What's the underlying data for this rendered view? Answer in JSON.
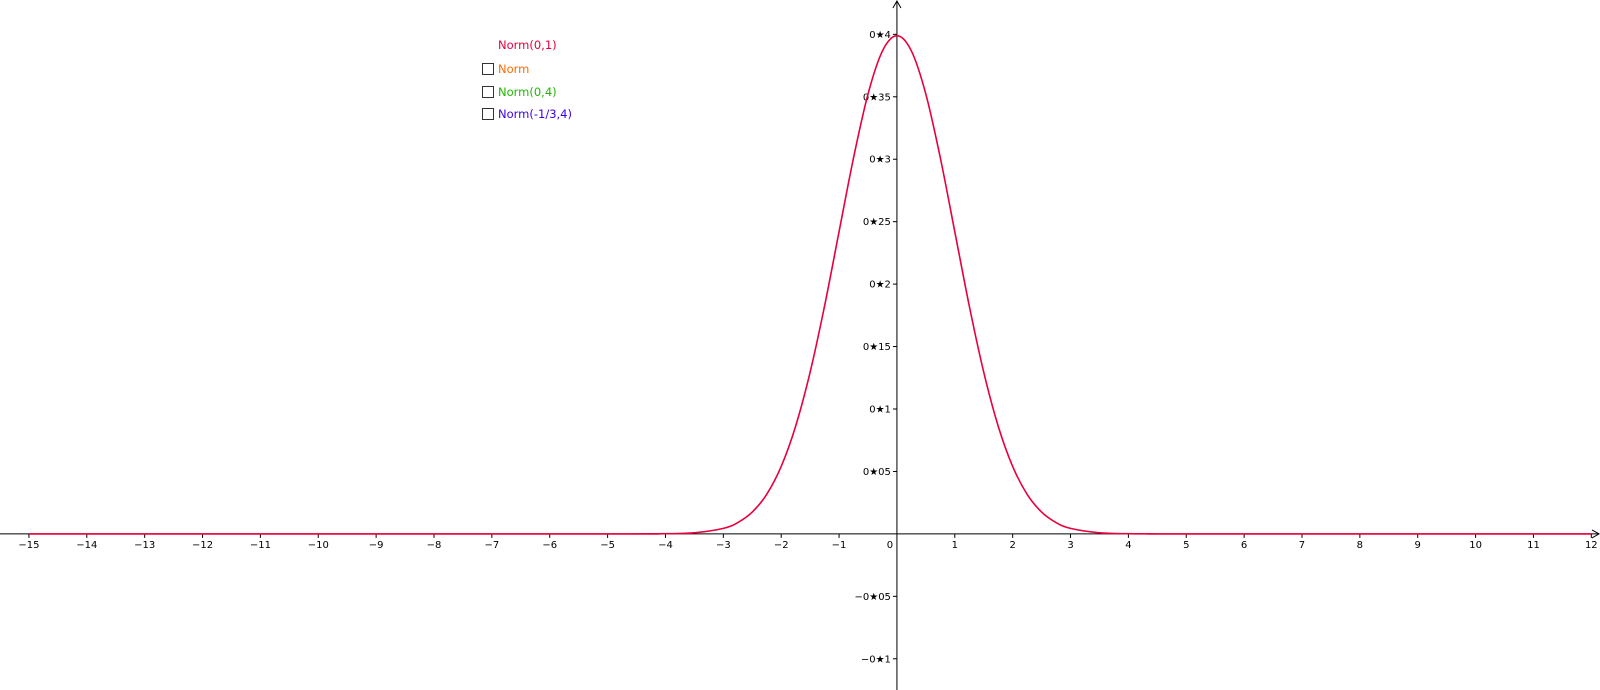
{
  "chart_data": {
    "type": "line",
    "title": "",
    "xlabel": "",
    "ylabel": "",
    "xlim": [
      -15.5,
      12.15
    ],
    "ylim": [
      -0.125,
      0.4275
    ],
    "grid": false,
    "x_ticks": [
      -15,
      -14,
      -13,
      -12,
      -11,
      -10,
      -9,
      -8,
      -7,
      -6,
      -5,
      -4,
      -3,
      -2,
      -1,
      0,
      1,
      2,
      3,
      4,
      5,
      6,
      7,
      8,
      9,
      10,
      11,
      12
    ],
    "x_tick_labels": [
      "−15",
      "−14",
      "−13",
      "−12",
      "−11",
      "−10",
      "−9",
      "−8",
      "−7",
      "−6",
      "−5",
      "−4",
      "−3",
      "−2",
      "−1",
      "0",
      "1",
      "2",
      "3",
      "4",
      "5",
      "6",
      "7",
      "8",
      "9",
      "10",
      "11",
      "12"
    ],
    "y_ticks": [
      0.4,
      0.35,
      0.3,
      0.25,
      0.2,
      0.15,
      0.1,
      0.05,
      -0.05,
      -0.1
    ],
    "y_tick_labels": [
      "0★4",
      "0★35",
      "0★3",
      "0★25",
      "0★2",
      "0★15",
      "0★1",
      "0★05",
      "−0★05",
      "−0★1"
    ],
    "series": [
      {
        "name": "Norm(0,1)",
        "color": "#e8003d",
        "x": [
          -15,
          -5,
          -4.5,
          -4,
          -3.5,
          -3,
          -2.75,
          -2.5,
          -2.25,
          -2,
          -1.75,
          -1.5,
          -1.25,
          -1,
          -0.75,
          -0.5,
          -0.25,
          0,
          0.25,
          0.5,
          0.75,
          1,
          1.25,
          1.5,
          1.75,
          2,
          2.25,
          2.5,
          2.75,
          3,
          3.5,
          4,
          4.5,
          5,
          12
        ],
        "y": [
          0,
          1.5e-06,
          1.6e-05,
          0.000134,
          0.000873,
          0.00443,
          0.00909,
          0.0175,
          0.0317,
          0.054,
          0.0863,
          0.1295,
          0.1826,
          0.242,
          0.3011,
          0.3521,
          0.3867,
          0.3989,
          0.3867,
          0.3521,
          0.3011,
          0.242,
          0.1826,
          0.1295,
          0.0863,
          0.054,
          0.0317,
          0.0175,
          0.00909,
          0.00443,
          0.000873,
          0.000134,
          1.6e-05,
          1.5e-06,
          0
        ]
      }
    ]
  },
  "legend": {
    "title": "Norm(0,1)",
    "title_color": "#e8003d",
    "items": [
      {
        "label": "Norm",
        "color": "#ff6a00",
        "checked": false
      },
      {
        "label": "Norm(0,4)",
        "color": "#1fb800",
        "checked": false
      },
      {
        "label": "Norm(-1/3,4)",
        "color": "#3a00e6",
        "checked": false
      }
    ]
  }
}
